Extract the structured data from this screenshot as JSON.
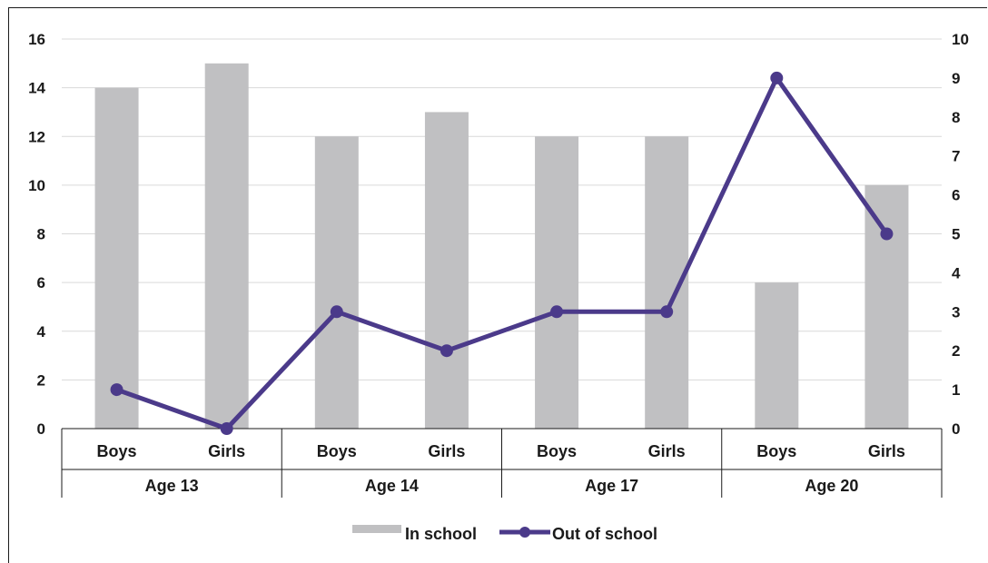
{
  "chart_data": {
    "type": "bar",
    "groups": [
      "Age 13",
      "Age 14",
      "Age 17",
      "Age 20"
    ],
    "categories": [
      "Boys",
      "Girls",
      "Boys",
      "Girls",
      "Boys",
      "Girls",
      "Boys",
      "Girls"
    ],
    "series": [
      {
        "name": "In school",
        "type": "bar",
        "axis": "left",
        "color": "#c0c0c2",
        "values": [
          14,
          15,
          12,
          13,
          12,
          12,
          6,
          10
        ]
      },
      {
        "name": "Out of school",
        "type": "line",
        "axis": "right",
        "color": "#4b3a8a",
        "values": [
          1,
          0,
          3,
          2,
          3,
          3,
          9,
          5
        ]
      }
    ],
    "ylim_left": [
      0,
      16
    ],
    "yticks_left": [
      0,
      2,
      4,
      6,
      8,
      10,
      12,
      14,
      16
    ],
    "ylim_right": [
      0,
      10
    ],
    "yticks_right": [
      0,
      1,
      2,
      3,
      4,
      5,
      6,
      7,
      8,
      9,
      10
    ],
    "grid": true,
    "legend": "bottom-center",
    "xlabel": "",
    "ylabel": ""
  }
}
